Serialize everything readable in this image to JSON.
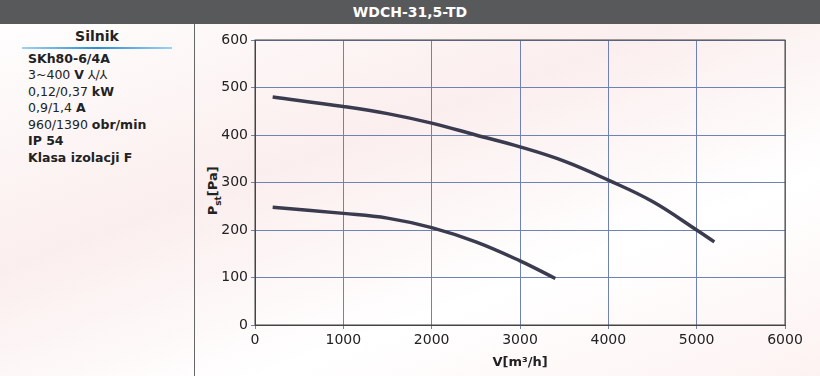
{
  "chart_data": {
    "type": "line",
    "title": "WDCH-31,5-TD",
    "xlabel": "V[m³/h]",
    "ylabel": [
      "P",
      "st",
      "[Pa]"
    ],
    "series": [
      {
        "color": "#3b3b4f",
        "x": [
          200,
          1000,
          1500,
          2000,
          2500,
          3000,
          3500,
          4000,
          4500,
          5000,
          5200
        ],
        "values": [
          480,
          460,
          445,
          425,
          400,
          375,
          345,
          305,
          260,
          200,
          175
        ]
      },
      {
        "color": "#3b3b4f",
        "x": [
          200,
          1000,
          1500,
          2000,
          2500,
          3000,
          3400
        ],
        "values": [
          248,
          235,
          225,
          205,
          175,
          135,
          98
        ]
      }
    ],
    "xlim": [
      0,
      6000
    ],
    "xticks": [
      0,
      1000,
      2000,
      3000,
      4000,
      5000,
      6000
    ],
    "ylim": [
      0,
      600
    ],
    "yticks": [
      0,
      100,
      200,
      300,
      400,
      500,
      600
    ],
    "grid": true
  },
  "motor": {
    "heading": "Silnik",
    "lines": [
      [
        {
          "t": "SKh80-6/4A",
          "b": true
        }
      ],
      [
        {
          "t": "3~400 ",
          "b": false
        },
        {
          "t": "V",
          "b": true
        },
        {
          "t": " ⅄/⅄",
          "b": false
        }
      ],
      [
        {
          "t": "0,12/0,37 ",
          "b": false
        },
        {
          "t": "kW",
          "b": true
        }
      ],
      [
        {
          "t": "0,9/1,4 ",
          "b": false
        },
        {
          "t": "A",
          "b": true
        }
      ],
      [
        {
          "t": "960/1390 ",
          "b": false
        },
        {
          "t": "obr/min",
          "b": true
        }
      ],
      [
        {
          "t": "IP 54",
          "b": true
        }
      ],
      [
        {
          "t": "Klasa izolacji F",
          "b": true
        }
      ]
    ]
  }
}
